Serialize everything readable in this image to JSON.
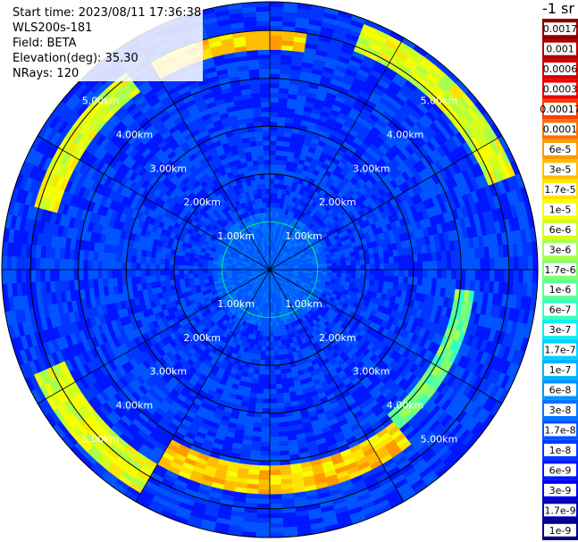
{
  "info": {
    "start_time": "Start time: 2023/08/11 17:36:38",
    "instrument": "WLS200s-181",
    "field": "Field: BETA",
    "elevation": "Elevation(deg): 35.30",
    "nrays": "NRays: 120"
  },
  "colorbar": {
    "unit_label": "-1 sr",
    "tick_labels": [
      "0.0017",
      "0.001",
      "0.0006",
      "0.0003",
      "0.00017",
      "0.0001",
      "6e-5",
      "3e-5",
      "1.7e-5",
      "1e-5",
      "6e-6",
      "3e-6",
      "1.7e-6",
      "1e-6",
      "6e-7",
      "3e-7",
      "1.7e-7",
      "1e-7",
      "6e-8",
      "3e-8",
      "1.7e-8",
      "1e-8",
      "6e-9",
      "3e-9",
      "1.7e-9",
      "1e-9"
    ],
    "colors": [
      "#8b0000",
      "#b00000",
      "#d40000",
      "#f00000",
      "#ff3c00",
      "#ff6e00",
      "#ff9a00",
      "#ffbe00",
      "#ffe400",
      "#f6ff00",
      "#d2ff1c",
      "#aaff4a",
      "#84ff70",
      "#5cff98",
      "#36ffc2",
      "#10f0ee",
      "#00cfff",
      "#00b2ff",
      "#0094ff",
      "#0074ff",
      "#0054ff",
      "#0036ff",
      "#0016ff",
      "#0000e8",
      "#0000b0",
      "#000080"
    ]
  },
  "chart_data": {
    "type": "heatmap",
    "title": "",
    "projection": "polar (PPI scan)",
    "field": "BETA",
    "start_time": "2023/08/11 17:36:38",
    "elevation_deg": 35.3,
    "nrays": 120,
    "range_unit": "km",
    "range_rings_km": [
      1,
      2,
      3,
      4,
      5
    ],
    "ring_labels": [
      "1.00km",
      "2.00km",
      "3.00km",
      "4.00km",
      "5.00km"
    ],
    "spoke_angles_deg": [
      0,
      30,
      60,
      90,
      120,
      150,
      180,
      210,
      240,
      270,
      300,
      330
    ],
    "max_range_km": 5.6,
    "colorscale": "jet, log scale 1e-9 to 0.0017",
    "features": [
      {
        "description": "high-backscatter arc",
        "azimuth_deg": [
          20,
          70
        ],
        "range_km": [
          4.9,
          5.5
        ],
        "value": "1e-5"
      },
      {
        "description": "high-backscatter arc",
        "azimuth_deg": [
          330,
          10
        ],
        "range_km": [
          4.6,
          5.0
        ],
        "value": "3e-5"
      },
      {
        "description": "high-backscatter arc",
        "azimuth_deg": [
          140,
          210
        ],
        "range_km": [
          4.1,
          4.7
        ],
        "value": "3e-5"
      },
      {
        "description": "high-backscatter arc",
        "azimuth_deg": [
          210,
          245
        ],
        "range_km": [
          4.7,
          5.4
        ],
        "value": "1e-5"
      },
      {
        "description": "elevated arc",
        "azimuth_deg": [
          95,
          140
        ],
        "range_km": [
          3.9,
          4.3
        ],
        "value": "1.7e-6"
      },
      {
        "description": "elevated arc",
        "azimuth_deg": [
          285,
          325
        ],
        "range_km": [
          4.6,
          5.1
        ],
        "value": "1e-5"
      }
    ],
    "background_value": "1e-8"
  }
}
